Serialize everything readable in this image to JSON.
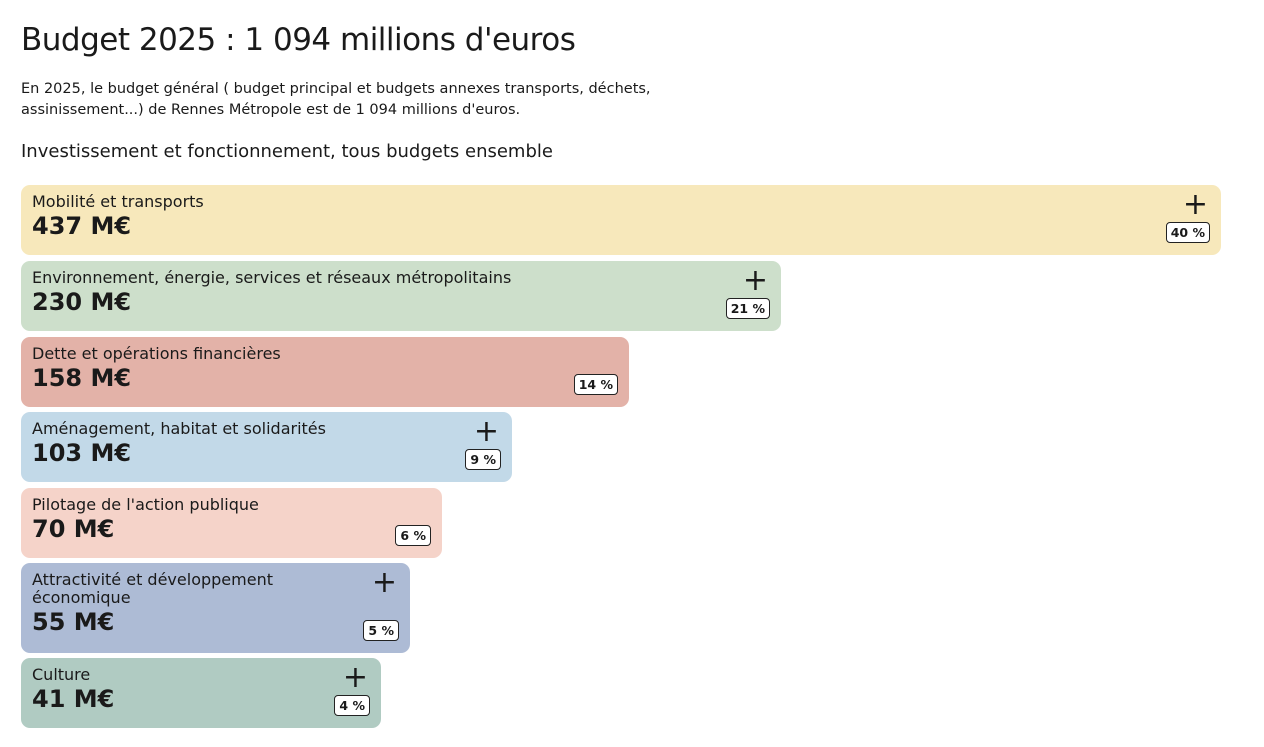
{
  "title": "Budget 2025 : 1 094 millions d'euros",
  "intro": "En 2025, le budget général ( budget principal et budgets annexes transports, déchets, assinissement...) de Rennes Métropole est de 1 094 millions d'euros.",
  "subtitle": "Investissement et fonctionnement, tous budgets ensemble",
  "items": [
    {
      "label": "Mobilité et transports",
      "value": "437 M€",
      "percent": "40 %",
      "expand": "+",
      "color": "#f7e8bb"
    },
    {
      "label": "Environnement, énergie, services et réseaux métropolitains",
      "value": "230 M€",
      "percent": "21 %",
      "expand": "+",
      "color": "#cddfcb"
    },
    {
      "label": "Dette et opérations financières",
      "value": "158 M€",
      "percent": "14 %",
      "color": "#e3b2a8"
    },
    {
      "label": "Aménagement, habitat et solidarités",
      "value": "103 M€",
      "percent": "9 %",
      "expand": "+",
      "color": "#c2d9e8"
    },
    {
      "label": "Pilotage de l'action publique",
      "value": "70 M€",
      "percent": "6 %",
      "color": "#f5d3c9"
    },
    {
      "label": "Attractivité et développement économique",
      "value": "55 M€",
      "percent": "5 %",
      "expand": "+",
      "color": "#adbbd5"
    },
    {
      "label": "Culture",
      "value": "41 M€",
      "percent": "4 %",
      "expand": "+",
      "color": "#b0cbc2"
    }
  ]
}
